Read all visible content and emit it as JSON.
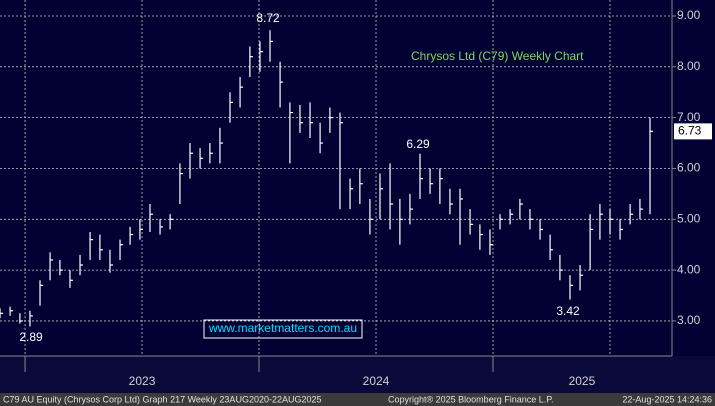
{
  "chart_data": {
    "type": "ohlc",
    "title": "Chrysos Ltd (C79) Weekly Chart",
    "watermark": "www.marketmatters.com.au",
    "footer_left": "C79 AU Equity (Chrysos Corp Ltd) Graph 217  Weekly 23AUG2020-22AUG2025",
    "footer_center": "Copyright® 2025 Bloomberg Finance L.P.",
    "footer_right": "22-Aug-2025 14:24:36",
    "color": "#ffffff",
    "grid": true,
    "x": [
      2022.893,
      2022.936,
      2022.978,
      2023.021,
      2023.064,
      2023.107,
      2023.149,
      2023.192,
      2023.235,
      2023.278,
      2023.32,
      2023.363,
      2023.406,
      2023.449,
      2023.491,
      2023.534,
      2023.577,
      2023.62,
      2023.662,
      2023.705,
      2023.748,
      2023.79,
      2023.833,
      2023.876,
      2023.919,
      2023.961,
      2024.004,
      2024.047,
      2024.09,
      2024.132,
      2024.175,
      2024.218,
      2024.261,
      2024.303,
      2024.346,
      2024.389,
      2024.431,
      2024.474,
      2024.517,
      2024.56,
      2024.602,
      2024.645,
      2024.688,
      2024.731,
      2024.773,
      2024.816,
      2024.859,
      2024.902,
      2024.944,
      2024.987,
      2025.03,
      2025.073,
      2025.115,
      2025.158,
      2025.201,
      2025.244,
      2025.286,
      2025.329,
      2025.372,
      2025.415,
      2025.457,
      2025.5,
      2025.543,
      2025.586,
      2025.628,
      2025.671
    ],
    "high": [
      3.25,
      3.28,
      3.15,
      3.2,
      3.8,
      4.35,
      4.2,
      4.0,
      4.3,
      4.75,
      4.7,
      4.4,
      4.6,
      4.85,
      5.0,
      5.3,
      5.0,
      5.1,
      6.1,
      6.5,
      6.4,
      6.5,
      6.8,
      7.5,
      7.8,
      8.4,
      8.5,
      8.72,
      8.1,
      7.3,
      7.25,
      7.3,
      6.9,
      7.2,
      7.1,
      5.8,
      6.0,
      5.4,
      5.9,
      6.1,
      5.4,
      5.5,
      6.29,
      6.0,
      6.0,
      5.6,
      5.6,
      5.2,
      4.9,
      4.8,
      5.1,
      5.2,
      5.4,
      5.2,
      5.0,
      4.7,
      4.3,
      3.9,
      4.1,
      5.1,
      5.3,
      5.2,
      5.0,
      5.3,
      5.4,
      7.0
    ],
    "low": [
      3.05,
      3.1,
      2.95,
      2.89,
      3.3,
      3.8,
      3.9,
      3.65,
      3.9,
      4.2,
      4.2,
      3.95,
      4.2,
      4.5,
      4.6,
      4.75,
      4.7,
      4.8,
      5.3,
      5.8,
      6.0,
      6.1,
      6.1,
      6.9,
      7.2,
      7.8,
      7.9,
      8.1,
      7.2,
      6.1,
      6.7,
      6.6,
      6.3,
      6.7,
      5.2,
      5.2,
      5.3,
      4.7,
      5.0,
      4.8,
      4.5,
      4.9,
      5.4,
      5.5,
      5.3,
      5.1,
      4.5,
      4.7,
      4.4,
      4.3,
      4.8,
      4.9,
      5.0,
      4.8,
      4.6,
      4.2,
      3.8,
      3.42,
      3.6,
      4.0,
      4.6,
      4.7,
      4.6,
      4.9,
      5.0,
      5.1
    ],
    "close": [
      3.15,
      3.2,
      3.0,
      3.1,
      3.7,
      4.2,
      4.0,
      3.8,
      4.1,
      4.6,
      4.4,
      4.1,
      4.5,
      4.7,
      4.8,
      5.1,
      4.85,
      5.0,
      5.9,
      6.3,
      6.2,
      6.3,
      6.5,
      7.3,
      7.6,
      8.2,
      8.3,
      8.5,
      7.7,
      7.1,
      6.9,
      6.9,
      6.5,
      7.0,
      6.9,
      5.6,
      5.7,
      5.0,
      5.6,
      5.3,
      5.0,
      5.2,
      5.8,
      5.7,
      5.8,
      5.3,
      5.4,
      4.9,
      4.7,
      4.5,
      5.0,
      5.1,
      5.3,
      5.0,
      4.8,
      4.4,
      4.0,
      3.7,
      3.9,
      4.8,
      5.1,
      5.0,
      4.8,
      5.1,
      5.2,
      6.73
    ],
    "annotations": [
      "8.72",
      "6.29",
      "3.42",
      "2.89"
    ],
    "last_label": "6.73",
    "xlim": [
      2022.893,
      2025.765
    ],
    "xticks": [
      {
        "value": 2023.5,
        "label": "2023"
      },
      {
        "value": 2024.5,
        "label": "2024"
      },
      {
        "value": 2025.38,
        "label": "2025"
      }
    ],
    "xdividers": [
      2023,
      2024,
      2025
    ],
    "xgrid": [
      2023,
      2023.5,
      2024,
      2024.5,
      2025,
      2025.5
    ],
    "ylim": [
      2.31,
      9.315
    ],
    "yticks": [
      {
        "value": 3,
        "label": "3.00"
      },
      {
        "value": 4,
        "label": "4.00"
      },
      {
        "value": 5,
        "label": "5.00"
      },
      {
        "value": 6,
        "label": "6.00"
      },
      {
        "value": 7,
        "label": "7.00"
      },
      {
        "value": 8,
        "label": "8.00"
      },
      {
        "value": 9,
        "label": "9.00"
      }
    ]
  }
}
